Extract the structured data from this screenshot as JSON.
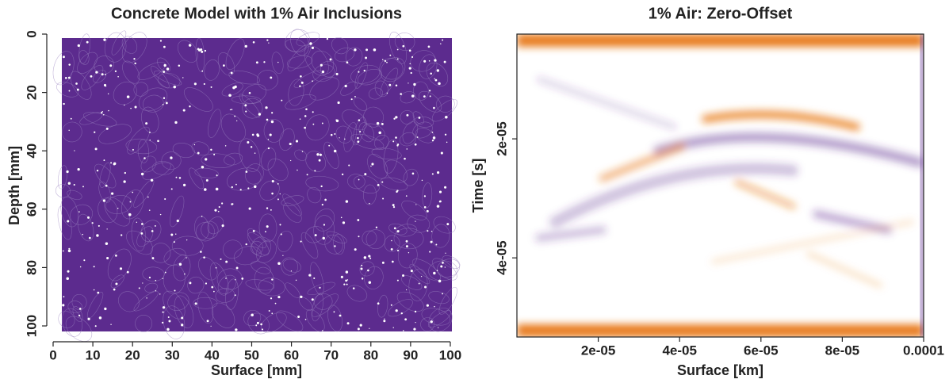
{
  "chart_data": [
    {
      "type": "image",
      "title": "Concrete Model with 1% Air Inclusions",
      "x_label": "Surface [mm]",
      "y_label": "Depth [mm]",
      "xlim": [
        0,
        102.4
      ],
      "ylim": [
        103.8,
        0
      ],
      "xticks": [
        0,
        10,
        20,
        30,
        40,
        50,
        60,
        70,
        80,
        90,
        100
      ],
      "yticks": [
        0,
        20,
        40,
        60,
        80,
        100
      ],
      "colors": [
        "#5c2b8e",
        "#ffffff"
      ]
    },
    {
      "type": "image",
      "title": "1% Air: Zero-Offset",
      "x_label": "Surface [km]",
      "y_label": "Time [s]",
      "xlim": [
        0,
        0.0001
      ],
      "ylim": [
        5.33e-05,
        2.4e-06
      ],
      "xticks": [
        {
          "value": 2e-05,
          "label": "2e-05"
        },
        {
          "value": 4e-05,
          "label": "4e-05"
        },
        {
          "value": 6e-05,
          "label": "6e-05"
        },
        {
          "value": 8e-05,
          "label": "8e-05"
        },
        0.0001
      ],
      "yticks": [
        {
          "value": 2e-05,
          "label": "2e-05"
        },
        {
          "value": 4e-05,
          "label": "4e-05"
        }
      ],
      "colors": [
        "#e87a1c",
        "#ffffff",
        "#5c2b8e"
      ]
    }
  ]
}
